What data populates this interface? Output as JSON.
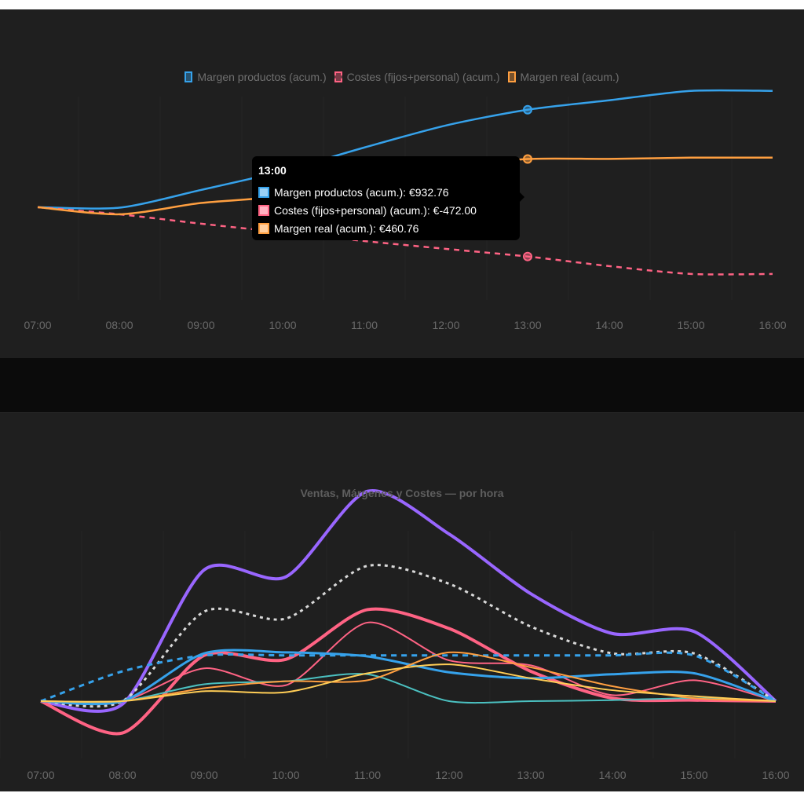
{
  "top_chart": {
    "legend": [
      {
        "label": "Margen productos (acum.)",
        "color": "#36a2eb",
        "style": "solid"
      },
      {
        "label": "Costes (fijos+personal) (acum.)",
        "color": "#ff6384",
        "style": "dashed"
      },
      {
        "label": "Margen real (acum.)",
        "color": "#ff9f40",
        "style": "solid"
      }
    ],
    "tooltip": {
      "title": "13:00",
      "rows": [
        {
          "text": "Margen productos (acum.): €932.76",
          "color": "#36a2eb",
          "fill": "#9ad0f5"
        },
        {
          "text": "Costes (fijos+personal) (acum.): €-472.00",
          "color": "#ff6384",
          "fill": "#ffb1c1"
        },
        {
          "text": "Margen real (acum.): €460.76",
          "color": "#ff9f40",
          "fill": "#ffcf9f"
        }
      ]
    }
  },
  "bottom_chart": {
    "title": "Ventas, Márgenes y Costes — por hora"
  },
  "chart_data": [
    {
      "type": "line",
      "title": "",
      "xlabel": "",
      "ylabel": "",
      "categories": [
        "07:00",
        "08:00",
        "09:00",
        "10:00",
        "11:00",
        "12:00",
        "13:00",
        "14:00",
        "15:00",
        "16:00"
      ],
      "ylim": [
        -850,
        1250
      ],
      "grid": true,
      "legend_position": "top",
      "highlight_index": 6,
      "series": [
        {
          "name": "Margen productos (acum.)",
          "color": "#36a2eb",
          "dashed": false,
          "values": [
            0,
            -5,
            165,
            346,
            571,
            782,
            932.76,
            1023,
            1113,
            1113
          ]
        },
        {
          "name": "Costes (fijos+personal) (acum.)",
          "color": "#ff6384",
          "dashed": true,
          "values": [
            0,
            -68,
            -158,
            -241,
            -324,
            -399,
            -472.0,
            -564,
            -639,
            -639
          ]
        },
        {
          "name": "Margen real (acum.)",
          "color": "#ff9f40",
          "dashed": false,
          "values": [
            0,
            -68,
            40,
            105,
            247,
            383,
            460.76,
            462,
            474,
            474
          ]
        }
      ]
    },
    {
      "type": "line",
      "title": "Ventas, Márgenes y Costes — por hora",
      "xlabel": "",
      "ylabel": "",
      "categories": [
        "07:00",
        "08:00",
        "09:00",
        "10:00",
        "11:00",
        "12:00",
        "13:00",
        "14:00",
        "15:00",
        "16:00"
      ],
      "ylim": [
        -60,
        240
      ],
      "grid": true,
      "legend_position": "none",
      "series": [
        {
          "name": "",
          "color": "#9966ff",
          "dashed": false,
          "width": 4,
          "values": [
            0,
            -3,
            132,
            125,
            211,
            168,
            108,
            68,
            70,
            0
          ]
        },
        {
          "name": "",
          "color": "#d9d9d9",
          "dashed": true,
          "dotted": true,
          "width": 3,
          "values": [
            0,
            0,
            90,
            83,
            136,
            118,
            75,
            48,
            48,
            0
          ]
        },
        {
          "name": "",
          "color": "#ff6384",
          "dashed": false,
          "width": 4,
          "values": [
            0,
            -32,
            46,
            42,
            92,
            73,
            30,
            3,
            1,
            0
          ]
        },
        {
          "name": "",
          "color": "#ff6384",
          "dashed": false,
          "width": 2,
          "values": [
            0,
            0,
            33,
            16,
            79,
            41,
            36,
            6,
            21,
            0
          ]
        },
        {
          "name": "",
          "color": "#36a2eb",
          "dashed": false,
          "width": 3,
          "values": [
            0,
            0,
            48,
            49,
            45,
            29,
            23,
            27,
            28,
            0
          ]
        },
        {
          "name": "",
          "color": "#36a2eb",
          "dashed": true,
          "width": 3,
          "values": [
            0,
            30,
            46,
            46,
            46,
            46,
            46,
            46,
            46,
            0
          ]
        },
        {
          "name": "",
          "color": "#4bc0c0",
          "dashed": false,
          "width": 2,
          "values": [
            0,
            0,
            17,
            20,
            27,
            0,
            0,
            1,
            3,
            0
          ]
        },
        {
          "name": "",
          "color": "#ff9f40",
          "dashed": false,
          "width": 2,
          "values": [
            0,
            0,
            13,
            20,
            21,
            49,
            34,
            15,
            3,
            0
          ]
        },
        {
          "name": "",
          "color": "#ffcd56",
          "dashed": false,
          "width": 2,
          "values": [
            0,
            0,
            10,
            9,
            28,
            37,
            23,
            11,
            5,
            0
          ]
        }
      ]
    }
  ]
}
